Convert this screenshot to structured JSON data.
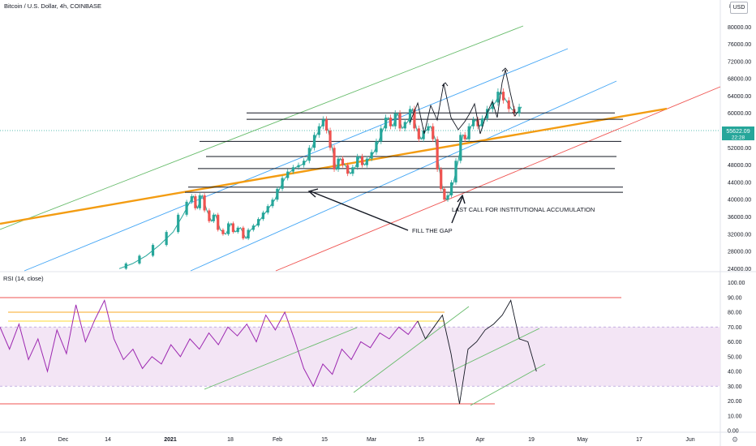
{
  "header": {
    "title": "Bitcoin / U.S. Dollar, 4h, COINBASE",
    "currency_button": "USD",
    "scale_top_cut": "8"
  },
  "price_badge": {
    "value": "55622.09",
    "countdown": "22:28",
    "color": "#26a69a"
  },
  "chart_data": {
    "type": "line",
    "title": "Bitcoin / U.S. Dollar, 4h, COINBASE",
    "price_axis": {
      "ticks": [
        80000,
        76000,
        72000,
        68000,
        64000,
        60000,
        56000,
        52000,
        48000,
        44000,
        40000,
        36000,
        32000,
        28000,
        24000
      ],
      "labels": [
        "80000.00",
        "76000.00",
        "72000.00",
        "68000.00",
        "64000.00",
        "60000.00",
        "56000.00",
        "52000.00",
        "48000.00",
        "44000.00",
        "40000.00",
        "36000.00",
        "32000.00",
        "28000.00",
        "24000.00"
      ],
      "range": [
        23500,
        84000
      ]
    },
    "rsi_axis": {
      "ticks": [
        100,
        90,
        80,
        70,
        60,
        50,
        40,
        30,
        20,
        10,
        0
      ],
      "labels": [
        "100.00",
        "90.00",
        "80.00",
        "70.00",
        "60.00",
        "50.00",
        "40.00",
        "30.00",
        "20.00",
        "10.00",
        "0.00"
      ],
      "range": [
        0,
        100
      ],
      "band": [
        30,
        70
      ]
    },
    "time_axis": {
      "labels": [
        "16",
        "Dec",
        "14",
        "2021",
        "18",
        "Feb",
        "15",
        "Mar",
        "15",
        "Apr",
        "19",
        "May",
        "17",
        "Jun"
      ],
      "bold": [
        "2021"
      ]
    },
    "rsi_indicator": {
      "label": "RSI (14, close)",
      "color": "#9c27b0",
      "band_color": "#e1bee7"
    },
    "horizontal_levels": [
      60100,
      58600,
      53500,
      50000,
      47200,
      42900,
      41700
    ],
    "annotations": [
      {
        "text": "FILL THE GAP"
      },
      {
        "text": "LAST CALL FOR INSTITUTIONAL ACCUMULATION"
      }
    ],
    "price_path": [
      [
        0.0,
        24000
      ],
      [
        2.0,
        25200
      ],
      [
        4.0,
        27000
      ],
      [
        6.0,
        29500
      ],
      [
        8.0,
        32500
      ],
      [
        9.5,
        36500
      ],
      [
        10.5,
        39500
      ],
      [
        11.0,
        40800
      ],
      [
        11.6,
        38000
      ],
      [
        12.3,
        41000
      ],
      [
        13.0,
        37500
      ],
      [
        13.7,
        35000
      ],
      [
        14.3,
        36500
      ],
      [
        15.0,
        33000
      ],
      [
        15.8,
        32000
      ],
      [
        16.6,
        34500
      ],
      [
        17.2,
        32500
      ],
      [
        18.0,
        33500
      ],
      [
        18.8,
        31000
      ],
      [
        19.5,
        33000
      ],
      [
        20.3,
        34000
      ],
      [
        21.0,
        35500
      ],
      [
        21.7,
        37000
      ],
      [
        22.4,
        38500
      ],
      [
        23.1,
        40000
      ],
      [
        23.8,
        42500
      ],
      [
        24.6,
        45000
      ],
      [
        25.4,
        46500
      ],
      [
        26.2,
        47500
      ],
      [
        27.0,
        48000
      ],
      [
        27.8,
        49000
      ],
      [
        28.6,
        52000
      ],
      [
        29.3,
        55000
      ],
      [
        30.0,
        57000
      ],
      [
        30.5,
        58600
      ],
      [
        31.0,
        56000
      ],
      [
        31.6,
        52000
      ],
      [
        32.2,
        47000
      ],
      [
        32.8,
        49500
      ],
      [
        33.5,
        48000
      ],
      [
        34.3,
        46000
      ],
      [
        35.0,
        47500
      ],
      [
        35.7,
        50000
      ],
      [
        36.4,
        48000
      ],
      [
        37.1,
        49500
      ],
      [
        37.8,
        51000
      ],
      [
        38.5,
        53500
      ],
      [
        39.2,
        56500
      ],
      [
        39.9,
        59000
      ],
      [
        40.6,
        57000
      ],
      [
        41.3,
        60000
      ],
      [
        42.0,
        56500
      ],
      [
        42.8,
        58000
      ],
      [
        43.5,
        61000
      ],
      [
        44.1,
        56500
      ],
      [
        44.8,
        54000
      ],
      [
        45.5,
        56000
      ],
      [
        46.2,
        57000
      ],
      [
        46.9,
        54000
      ],
      [
        47.5,
        47000
      ],
      [
        48.0,
        42500
      ],
      [
        48.5,
        40000
      ],
      [
        49.0,
        41000
      ],
      [
        49.6,
        44000
      ],
      [
        50.3,
        49000
      ],
      [
        51.0,
        55000
      ],
      [
        51.6,
        54000
      ],
      [
        52.2,
        57000
      ],
      [
        52.9,
        58500
      ],
      [
        53.5,
        57000
      ],
      [
        54.2,
        58800
      ],
      [
        55.0,
        61000
      ],
      [
        55.8,
        62500
      ],
      [
        56.6,
        65000
      ],
      [
        57.4,
        63000
      ],
      [
        58.2,
        61000
      ],
      [
        59.0,
        60000
      ],
      [
        59.7,
        61500
      ]
    ],
    "rsi_path": [
      [
        0.0,
        70
      ],
      [
        1.0,
        55
      ],
      [
        2.0,
        72
      ],
      [
        3.0,
        48
      ],
      [
        4.0,
        62
      ],
      [
        5.0,
        40
      ],
      [
        6.0,
        68
      ],
      [
        7.0,
        52
      ],
      [
        8.0,
        85
      ],
      [
        9.0,
        60
      ],
      [
        10.0,
        75
      ],
      [
        11.0,
        88
      ],
      [
        12.0,
        62
      ],
      [
        13.0,
        48
      ],
      [
        14.0,
        55
      ],
      [
        15.0,
        42
      ],
      [
        16.0,
        50
      ],
      [
        17.0,
        45
      ],
      [
        18.0,
        58
      ],
      [
        19.0,
        50
      ],
      [
        20.0,
        62
      ],
      [
        21.0,
        55
      ],
      [
        22.0,
        66
      ],
      [
        23.0,
        58
      ],
      [
        24.0,
        70
      ],
      [
        25.0,
        64
      ],
      [
        26.0,
        72
      ],
      [
        27.0,
        60
      ],
      [
        28.0,
        78
      ],
      [
        29.0,
        68
      ],
      [
        30.0,
        80
      ],
      [
        31.0,
        62
      ],
      [
        32.0,
        42
      ],
      [
        33.0,
        30
      ],
      [
        34.0,
        45
      ],
      [
        35.0,
        38
      ],
      [
        36.0,
        55
      ],
      [
        37.0,
        48
      ],
      [
        38.0,
        60
      ],
      [
        39.0,
        56
      ],
      [
        40.0,
        66
      ],
      [
        41.0,
        62
      ],
      [
        42.0,
        70
      ],
      [
        43.0,
        65
      ],
      [
        44.0,
        74
      ]
    ],
    "projection_path": [
      [
        44.0,
        74
      ],
      [
        44.8,
        62
      ],
      [
        45.7,
        70
      ],
      [
        46.6,
        78
      ],
      [
        47.5,
        52
      ],
      [
        48.4,
        18
      ],
      [
        49.3,
        55
      ],
      [
        50.2,
        60
      ],
      [
        51.1,
        68
      ],
      [
        52.0,
        72
      ],
      [
        52.9,
        78
      ],
      [
        53.8,
        88
      ],
      [
        54.7,
        62
      ],
      [
        55.6,
        60
      ],
      [
        56.5,
        40
      ]
    ]
  }
}
